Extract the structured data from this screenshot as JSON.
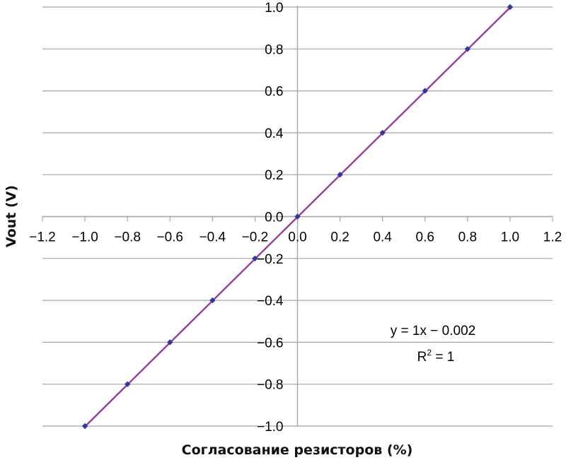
{
  "chart_data": {
    "type": "scatter",
    "title": "",
    "xlabel": "Согласование резисторов (%)",
    "ylabel": "Vout (V)",
    "xlim": [
      -1.2,
      1.2
    ],
    "ylim": [
      -1.0,
      1.0
    ],
    "x_ticks": [
      "−1.2",
      "−1.0",
      "−0.8",
      "−0.6",
      "−0.4",
      "−0.2",
      "0.0",
      "0.2",
      "0.4",
      "0.6",
      "0.8",
      "1.0",
      "1.2"
    ],
    "y_ticks": [
      "1.0",
      "0.8",
      "0.6",
      "0.4",
      "0.2",
      "0.0",
      "−0.2",
      "−0.4",
      "−0.6",
      "−0.8",
      "−1.0"
    ],
    "grid": "horizontal",
    "series": [
      {
        "x": [
          -1.0,
          -0.8,
          -0.6,
          -0.4,
          -0.2,
          0.0,
          0.2,
          0.4,
          0.6,
          0.8,
          1.0
        ],
        "y": [
          -1.0,
          -0.8,
          -0.6,
          -0.4,
          -0.2,
          0.0,
          0.2,
          0.4,
          0.6,
          0.8,
          1.0
        ],
        "marker_color": "#2e3aa0"
      }
    ],
    "trendline": {
      "slope": 1,
      "intercept": -0.002,
      "color": "#9b3a9c",
      "equation": "y = 1x − 0.002",
      "r2_prefix": "R",
      "r2_sup": "2",
      "r2_suffix": " = 1"
    },
    "colors": {
      "grid": "#a6a6a6",
      "axis": "#a6a6a6"
    }
  }
}
